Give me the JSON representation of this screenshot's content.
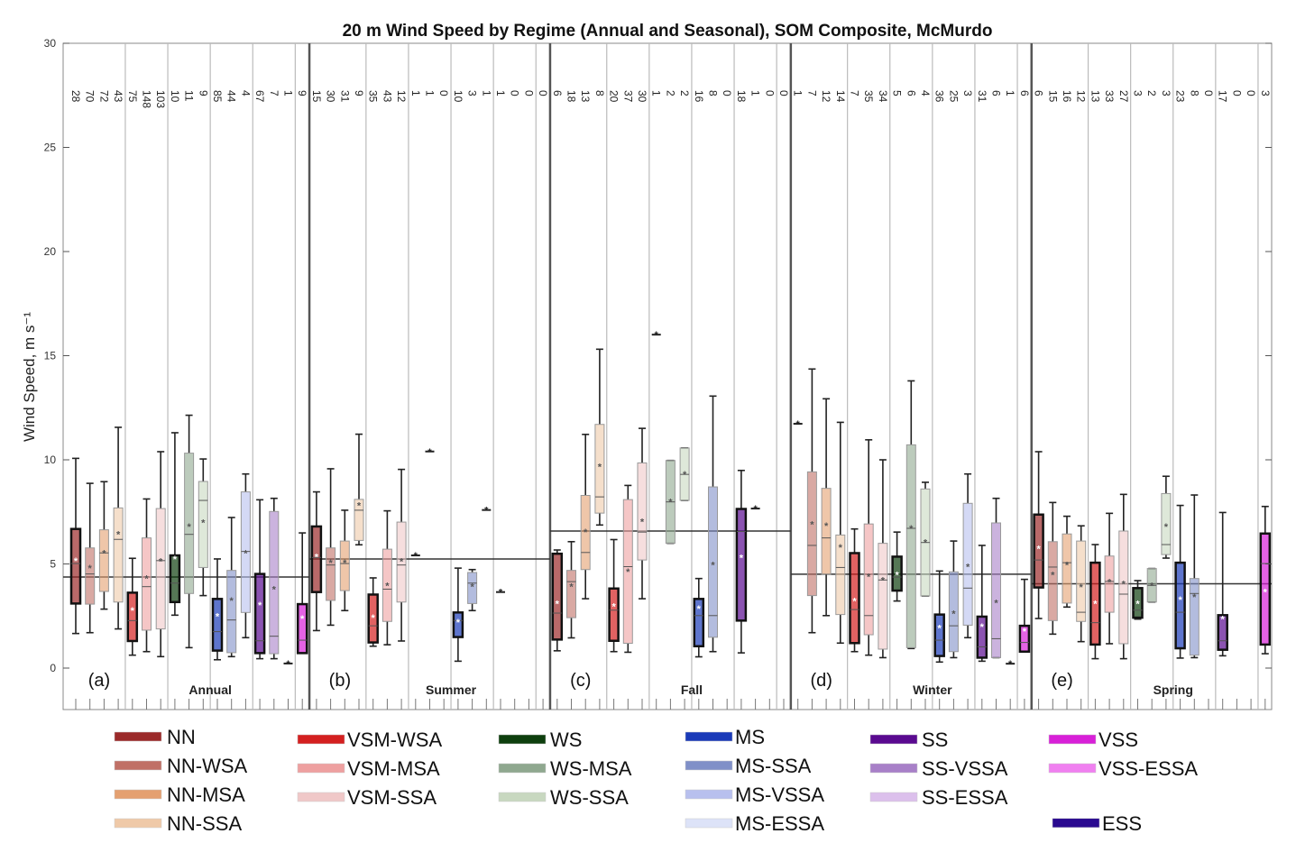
{
  "chart_data": {
    "type": "box",
    "title": "20 m Wind Speed by Regime (Annual and Seasonal), SOM Composite, McMurdo",
    "ylabel": "Wind Speed, m s⁻¹",
    "xlabel": "",
    "ylim": [
      -2,
      30
    ],
    "yticks": [
      0,
      5,
      10,
      15,
      20,
      25,
      30
    ],
    "grid": false,
    "legend_position": "bottom",
    "stats_order": [
      "n",
      "whisker_low",
      "q1",
      "median",
      "q3",
      "whisker_high",
      "mean"
    ],
    "legend": [
      {
        "name": "NN",
        "color": "#9b2a2a"
      },
      {
        "name": "NN-WSA",
        "color": "#c07066"
      },
      {
        "name": "NN-MSA",
        "color": "#e4a070"
      },
      {
        "name": "NN-SSA",
        "color": "#efc9a8"
      },
      {
        "name": "VSM-WSA",
        "color": "#d42020"
      },
      {
        "name": "VSM-MSA",
        "color": "#eea0a0"
      },
      {
        "name": "VSM-SSA",
        "color": "#f0c8c8"
      },
      {
        "name": "WS",
        "color": "#0e3f0e"
      },
      {
        "name": "WS-MSA",
        "color": "#8fa88f"
      },
      {
        "name": "WS-SSA",
        "color": "#c8d8c0"
      },
      {
        "name": "MS",
        "color": "#1a3ab8"
      },
      {
        "name": "MS-SSA",
        "color": "#8090c8"
      },
      {
        "name": "MS-VSSA",
        "color": "#b8c0ee"
      },
      {
        "name": "MS-ESSA",
        "color": "#dde3f8"
      },
      {
        "name": "SS",
        "color": "#5a0a90"
      },
      {
        "name": "SS-VSSA",
        "color": "#a880c8"
      },
      {
        "name": "SS-ESSA",
        "color": "#dcc0ec"
      },
      {
        "name": "VSS",
        "color": "#d820d8"
      },
      {
        "name": "VSS-ESSA",
        "color": "#f080f0"
      },
      {
        "name": "ESS",
        "color": "#2a0a90"
      }
    ],
    "plot_order": [
      "NN",
      "NN-WSA",
      "NN-MSA",
      "NN-SSA",
      "VSM-WSA",
      "VSM-MSA",
      "VSM-SSA",
      "WS",
      "WS-MSA",
      "WS-SSA",
      "MS",
      "MS-SSA",
      "MS-VSSA",
      "SS",
      "SS-VSSA",
      "SS-ESSA",
      "VSS"
    ],
    "panels": [
      {
        "label": "(a)",
        "season": "Annual",
        "mean_line": 4.37,
        "boxes": [
          [
            28,
            1.66,
            3.1,
            5.02,
            6.68,
            10.07,
            5.16
          ],
          [
            70,
            1.7,
            3.07,
            4.52,
            5.77,
            8.87,
            4.8
          ],
          [
            72,
            2.83,
            3.68,
            5.53,
            6.64,
            8.95,
            5.53
          ],
          [
            43,
            1.88,
            3.17,
            6.18,
            7.69,
            11.56,
            6.42
          ],
          [
            75,
            0.62,
            1.3,
            2.28,
            3.62,
            5.27,
            2.76
          ],
          [
            148,
            0.79,
            1.82,
            3.91,
            6.25,
            8.12,
            4.3
          ],
          [
            103,
            0.55,
            1.88,
            5.16,
            7.66,
            10.39,
            5.12
          ],
          [
            10,
            2.54,
            3.17,
            4.08,
            5.41,
            11.3,
            5.24
          ],
          [
            11,
            0.98,
            3.58,
            6.42,
            10.32,
            12.14,
            6.8
          ],
          [
            9,
            3.48,
            4.83,
            8.05,
            8.96,
            10.04,
            7.0
          ],
          [
            85,
            0.4,
            0.84,
            1.75,
            3.32,
            5.24,
            2.5
          ],
          [
            44,
            0.55,
            0.74,
            2.31,
            4.69,
            7.23,
            3.25
          ],
          [
            4,
            1.46,
            2.67,
            5.6,
            8.46,
            9.32,
            5.53
          ],
          [
            67,
            0.45,
            0.72,
            1.31,
            4.52,
            8.08,
            3.04
          ],
          [
            7,
            0.45,
            0.69,
            1.53,
            7.52,
            8.15,
            3.79
          ],
          [
            1,
            0.22,
            0.22,
            0.22,
            0.22,
            0.22,
            0.22
          ],
          [
            9,
            0.72,
            0.72,
            1.34,
            3.07,
            6.49,
            2.38
          ]
        ]
      },
      {
        "label": "(b)",
        "season": "Summer",
        "mean_line": 5.24,
        "boxes": [
          [
            15,
            1.8,
            3.65,
            5.31,
            6.8,
            8.46,
            5.35
          ],
          [
            30,
            2.06,
            3.25,
            4.95,
            5.77,
            9.57,
            5.06
          ],
          [
            31,
            2.76,
            3.72,
            5.02,
            6.1,
            7.58,
            5.06
          ],
          [
            9,
            5.92,
            6.13,
            7.58,
            8.1,
            11.23,
            7.81
          ],
          [
            35,
            1.05,
            1.23,
            2.03,
            3.53,
            4.33,
            2.42
          ],
          [
            43,
            1.12,
            2.24,
            3.79,
            5.71,
            7.55,
            3.97
          ],
          [
            12,
            1.3,
            3.17,
            4.95,
            7.01,
            9.54,
            5.12
          ],
          [
            1,
            5.41,
            5.41,
            5.41,
            5.41,
            5.41,
            5.41
          ],
          [
            1,
            10.4,
            10.4,
            10.4,
            10.4,
            10.4,
            10.4
          ],
          [
            0,
            null,
            null,
            null,
            null,
            null,
            null
          ],
          [
            10,
            0.33,
            1.49,
            2.28,
            2.67,
            4.8,
            2.21
          ],
          [
            3,
            2.76,
            3.1,
            4.08,
            4.59,
            4.73,
            3.91
          ],
          [
            1,
            7.59,
            7.59,
            7.59,
            7.59,
            7.59,
            7.59
          ],
          [
            1,
            3.65,
            3.65,
            3.65,
            3.65,
            3.65,
            3.65
          ],
          [
            0,
            null,
            null,
            null,
            null,
            null,
            null
          ],
          [
            0,
            null,
            null,
            null,
            null,
            null,
            null
          ],
          [
            0,
            null,
            null,
            null,
            null,
            null,
            null
          ]
        ]
      },
      {
        "label": "(c)",
        "season": "Fall",
        "mean_line": 6.58,
        "boxes": [
          [
            6,
            0.83,
            1.37,
            2.64,
            5.49,
            5.67,
            3.1
          ],
          [
            18,
            1.45,
            2.42,
            4.15,
            4.69,
            6.07,
            3.91
          ],
          [
            13,
            3.33,
            4.73,
            5.55,
            8.29,
            11.22,
            6.53
          ],
          [
            8,
            6.87,
            7.44,
            8.22,
            11.7,
            15.31,
            9.67
          ],
          [
            20,
            0.79,
            1.31,
            2.78,
            3.82,
            6.17,
            2.97
          ],
          [
            37,
            0.76,
            1.19,
            4.87,
            8.09,
            8.77,
            4.63
          ],
          [
            30,
            3.33,
            5.19,
            6.53,
            9.85,
            11.51,
            7.04
          ],
          [
            1,
            16.01,
            16.01,
            16.01,
            16.01,
            16.01,
            16.01
          ],
          [
            2,
            5.99,
            5.99,
            7.98,
            9.97,
            9.97,
            7.98
          ],
          [
            2,
            8.05,
            8.05,
            9.3,
            10.57,
            10.57,
            9.3
          ],
          [
            16,
            0.54,
            1.05,
            2.52,
            3.32,
            4.3,
            2.85
          ],
          [
            8,
            0.79,
            1.48,
            2.52,
            8.7,
            13.06,
            4.95
          ],
          [
            0,
            null,
            null,
            null,
            null,
            null,
            null
          ],
          [
            18,
            0.73,
            2.28,
            6.56,
            7.64,
            9.49,
            5.31
          ],
          [
            1,
            7.66,
            7.66,
            7.66,
            7.66,
            7.66,
            7.66
          ],
          [
            0,
            null,
            null,
            null,
            null,
            null,
            null
          ],
          [
            0,
            null,
            null,
            null,
            null,
            null,
            null
          ]
        ]
      },
      {
        "label": "(d)",
        "season": "Winter",
        "mean_line": 4.51,
        "boxes": [
          [
            1,
            11.73,
            11.73,
            11.73,
            11.73,
            11.73,
            11.73
          ],
          [
            7,
            1.7,
            3.48,
            5.89,
            9.42,
            14.36,
            6.9
          ],
          [
            12,
            2.52,
            4.51,
            6.25,
            8.63,
            12.93,
            6.85
          ],
          [
            14,
            1.2,
            2.57,
            4.83,
            6.39,
            11.8,
            5.81
          ],
          [
            7,
            0.79,
            1.2,
            2.81,
            5.52,
            6.68,
            3.22
          ],
          [
            35,
            0.62,
            1.6,
            2.52,
            6.92,
            10.96,
            4.4
          ],
          [
            34,
            0.5,
            0.91,
            4.23,
            5.99,
            10.0,
            4.23
          ],
          [
            5,
            3.22,
            3.72,
            4.37,
            5.35,
            6.53,
            4.49
          ],
          [
            6,
            0.94,
            0.98,
            6.71,
            10.72,
            13.79,
            6.71
          ],
          [
            4,
            3.46,
            3.46,
            6.03,
            8.6,
            8.92,
            6.03
          ],
          [
            36,
            0.29,
            0.58,
            1.34,
            2.57,
            4.66,
            1.92
          ],
          [
            25,
            0.5,
            0.79,
            2.03,
            4.62,
            6.1,
            2.61
          ],
          [
            3,
            1.46,
            2.06,
            3.84,
            7.91,
            9.32,
            4.88
          ],
          [
            31,
            0.33,
            0.5,
            1.02,
            2.47,
            5.89,
            1.99
          ],
          [
            6,
            0.5,
            0.5,
            1.41,
            6.97,
            8.15,
            3.14
          ],
          [
            1,
            0.21,
            0.21,
            0.21,
            0.21,
            0.21,
            0.21
          ],
          [
            6,
            0.79,
            0.79,
            1.23,
            2.03,
            4.26,
            1.77
          ]
        ]
      },
      {
        "label": "(e)",
        "season": "Spring",
        "mean_line": 4.05,
        "boxes": [
          [
            6,
            2.38,
            3.87,
            5.19,
            7.37,
            10.39,
            5.74
          ],
          [
            15,
            1.63,
            2.28,
            4.85,
            6.07,
            7.95,
            4.49
          ],
          [
            16,
            2.93,
            3.12,
            5.06,
            6.44,
            7.29,
            4.95
          ],
          [
            12,
            1.27,
            2.24,
            2.68,
            6.1,
            6.83,
            3.9
          ],
          [
            13,
            0.45,
            1.13,
            2.18,
            5.06,
            5.93,
            3.1
          ],
          [
            33,
            1.17,
            2.68,
            4.16,
            5.38,
            7.43,
            4.13
          ],
          [
            27,
            0.45,
            1.17,
            3.55,
            6.58,
            8.34,
            4.04
          ],
          [
            3,
            2.35,
            2.42,
            2.78,
            3.84,
            4.2,
            3.1
          ],
          [
            2,
            3.17,
            3.17,
            3.97,
            4.78,
            4.78,
            3.97
          ],
          [
            3,
            5.28,
            5.45,
            5.93,
            8.38,
            9.21,
            6.8
          ],
          [
            23,
            0.48,
            0.95,
            2.68,
            5.06,
            7.81,
            3.29
          ],
          [
            8,
            0.5,
            0.62,
            3.58,
            4.3,
            8.31,
            3.43
          ],
          [
            0,
            null,
            null,
            null,
            null,
            null,
            null
          ],
          [
            17,
            0.59,
            0.88,
            1.31,
            2.54,
            7.47,
            2.35
          ],
          [
            0,
            null,
            null,
            null,
            null,
            null,
            null
          ],
          [
            0,
            null,
            null,
            null,
            null,
            null,
            null
          ],
          [
            3,
            0.69,
            1.13,
            5.02,
            6.46,
            7.76,
            3.65
          ]
        ]
      }
    ]
  }
}
